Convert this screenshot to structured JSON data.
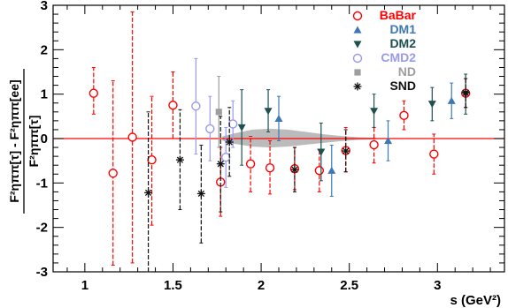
{
  "chart_data": {
    "type": "scatter",
    "xlabel": "s (GeV²)",
    "ylabel": {
      "numerator_left": "F²ηππ[τ] - F²ηππ[ee]",
      "denominator": "F²ηππ[τ]"
    },
    "xlim": [
      0.82,
      3.38
    ],
    "ylim": [
      -3,
      3
    ],
    "x_ticks": [
      "1",
      "1.5",
      "2",
      "2.5",
      "3"
    ],
    "x_tick_values": [
      1,
      1.5,
      2,
      2.5,
      3
    ],
    "y_ticks": [
      "-3",
      "-2",
      "-1",
      "0",
      "1",
      "2",
      "3"
    ],
    "y_tick_values": [
      -3,
      -2,
      -1,
      0,
      1,
      2,
      3
    ],
    "reference_line": {
      "y": 0,
      "color": "#ff0000"
    },
    "band": {
      "color": "#bbbbbb",
      "x": [
        1.78,
        1.85,
        1.95,
        2.05,
        2.15,
        2.25,
        2.35,
        2.45,
        2.55,
        2.65
      ],
      "upper": [
        0.05,
        0.12,
        0.2,
        0.22,
        0.2,
        0.15,
        0.1,
        0.06,
        0.03,
        0.02
      ],
      "lower": [
        -0.05,
        -0.12,
        -0.18,
        -0.2,
        -0.18,
        -0.14,
        -0.1,
        -0.06,
        -0.03,
        -0.02
      ]
    },
    "series": [
      {
        "name": "BaBar",
        "color": "#ff0000",
        "marker": "open-circle",
        "points": [
          {
            "x": 1.05,
            "y": 1.02,
            "lo": 0.55,
            "hi": 1.6
          },
          {
            "x": 1.16,
            "y": -0.78,
            "lo": -2.85,
            "hi": 1.3
          },
          {
            "x": 1.27,
            "y": 0.03,
            "lo": -2.8,
            "hi": 2.85
          },
          {
            "x": 1.38,
            "y": -0.48,
            "lo": -1.95,
            "hi": 0.95
          },
          {
            "x": 1.5,
            "y": 0.75,
            "lo": 0.0,
            "hi": 1.5
          },
          {
            "x": 1.77,
            "y": -0.98,
            "lo": -1.75,
            "hi": -0.2
          },
          {
            "x": 1.94,
            "y": -0.57,
            "lo": -1.2,
            "hi": 0.05
          },
          {
            "x": 2.05,
            "y": -0.66,
            "lo": -1.25,
            "hi": -0.05
          },
          {
            "x": 2.19,
            "y": -0.68,
            "lo": -1.15,
            "hi": -0.2
          },
          {
            "x": 2.33,
            "y": -0.72,
            "lo": -1.2,
            "hi": -0.25
          },
          {
            "x": 2.48,
            "y": -0.27,
            "lo": -0.75,
            "hi": 0.25
          },
          {
            "x": 2.64,
            "y": -0.14,
            "lo": -0.55,
            "hi": 0.25
          },
          {
            "x": 2.81,
            "y": 0.52,
            "lo": 0.2,
            "hi": 0.85
          },
          {
            "x": 2.98,
            "y": -0.35,
            "lo": -0.8,
            "hi": 0.1
          },
          {
            "x": 3.16,
            "y": 1.02,
            "lo": 0.7,
            "hi": 1.35
          }
        ]
      },
      {
        "name": "DM1",
        "color": "#3d78b4",
        "marker": "triangle-up",
        "points": [
          {
            "x": 2.1,
            "y": 0.45,
            "lo": -0.05,
            "hi": 0.95
          },
          {
            "x": 2.4,
            "y": -0.72,
            "lo": -1.3,
            "hi": -0.15
          },
          {
            "x": 2.72,
            "y": -0.05,
            "lo": -0.5,
            "hi": 0.4
          },
          {
            "x": 3.08,
            "y": 0.85,
            "lo": 0.45,
            "hi": 1.25
          }
        ]
      },
      {
        "name": "DM2",
        "color": "#1f5050",
        "marker": "triangle-down",
        "points": [
          {
            "x": 1.89,
            "y": 0.25,
            "lo": -0.6,
            "hi": 1.1
          },
          {
            "x": 2.04,
            "y": 0.62,
            "lo": 0.15,
            "hi": 1.1
          },
          {
            "x": 2.34,
            "y": -0.3,
            "lo": -0.95,
            "hi": 0.35
          },
          {
            "x": 2.64,
            "y": 0.62,
            "lo": 0.25,
            "hi": 1.0
          },
          {
            "x": 2.97,
            "y": 0.78,
            "lo": 0.4,
            "hi": 1.15
          },
          {
            "x": 3.16,
            "y": 1.0,
            "lo": 0.55,
            "hi": 1.45
          }
        ]
      },
      {
        "name": "CMD2",
        "color": "#9999ee",
        "marker": "open-circle",
        "points": [
          {
            "x": 1.63,
            "y": 0.73,
            "lo": -0.35,
            "hi": 1.8
          },
          {
            "x": 1.71,
            "y": 0.22,
            "lo": -0.5,
            "hi": 0.95
          },
          {
            "x": 1.8,
            "y": -0.42,
            "lo": -1.1,
            "hi": 0.25
          },
          {
            "x": 1.84,
            "y": 0.33,
            "lo": -0.2,
            "hi": 0.85
          }
        ]
      },
      {
        "name": "ND",
        "color": "#9e9e9e",
        "marker": "square",
        "points": [
          {
            "x": 1.76,
            "y": 0.6,
            "lo": -0.2,
            "hi": 1.4
          }
        ]
      },
      {
        "name": "SND",
        "color": "#111111",
        "marker": "star",
        "points": [
          {
            "x": 1.36,
            "y": -1.22,
            "lo": -3.0,
            "hi": 0.6
          },
          {
            "x": 1.54,
            "y": -0.48,
            "lo": -1.6,
            "hi": 0.65
          },
          {
            "x": 1.66,
            "y": -1.24,
            "lo": -2.35,
            "hi": -0.15
          },
          {
            "x": 1.77,
            "y": -0.57,
            "lo": -1.65,
            "hi": 0.5
          },
          {
            "x": 1.82,
            "y": -0.08,
            "lo": -0.85,
            "hi": 0.7
          },
          {
            "x": 2.19,
            "y": -0.7,
            "lo": -1.2,
            "hi": -0.2
          },
          {
            "x": 2.48,
            "y": -0.28,
            "lo": -0.75,
            "hi": 0.2
          },
          {
            "x": 3.16,
            "y": 1.03,
            "lo": 0.7,
            "hi": 1.35
          }
        ]
      }
    ],
    "legend": {
      "placement": "top-right",
      "entries": [
        {
          "label": "BaBar",
          "color": "#ff0000",
          "marker": "open-circle"
        },
        {
          "label": "DM1",
          "color": "#3d78b4",
          "marker": "triangle-up"
        },
        {
          "label": "DM2",
          "color": "#1f5050",
          "marker": "triangle-down"
        },
        {
          "label": "CMD2",
          "color": "#9999ee",
          "marker": "open-circle"
        },
        {
          "label": "ND",
          "color": "#9e9e9e",
          "marker": "square"
        },
        {
          "label": "SND",
          "color": "#111111",
          "marker": "star"
        }
      ]
    }
  }
}
